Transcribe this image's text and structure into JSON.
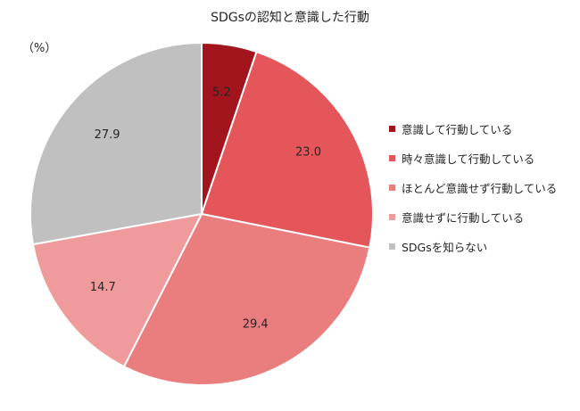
{
  "chart_data": {
    "type": "pie",
    "title": "SDGsの認知と意識した行動",
    "unit_label": "（%）",
    "start_angle_deg": 0,
    "direction": "clockwise",
    "legend_position": "right",
    "slices": [
      {
        "label": "意識して行動している",
        "value": 5.2,
        "display": "5.2",
        "color": "#a2151d"
      },
      {
        "label": "時々意識して行動している",
        "value": 23.0,
        "display": "23.0",
        "color": "#e5565a"
      },
      {
        "label": "ほとんど意識せず行動している",
        "value": 29.4,
        "display": "29.4",
        "color": "#ea7d7e"
      },
      {
        "label": "意識せずに行動している",
        "value": 14.7,
        "display": "14.7",
        "color": "#ef9b9c"
      },
      {
        "label": "SDGsを知らない",
        "value": 27.9,
        "display": "27.9",
        "color": "#c0c0c0"
      }
    ]
  }
}
